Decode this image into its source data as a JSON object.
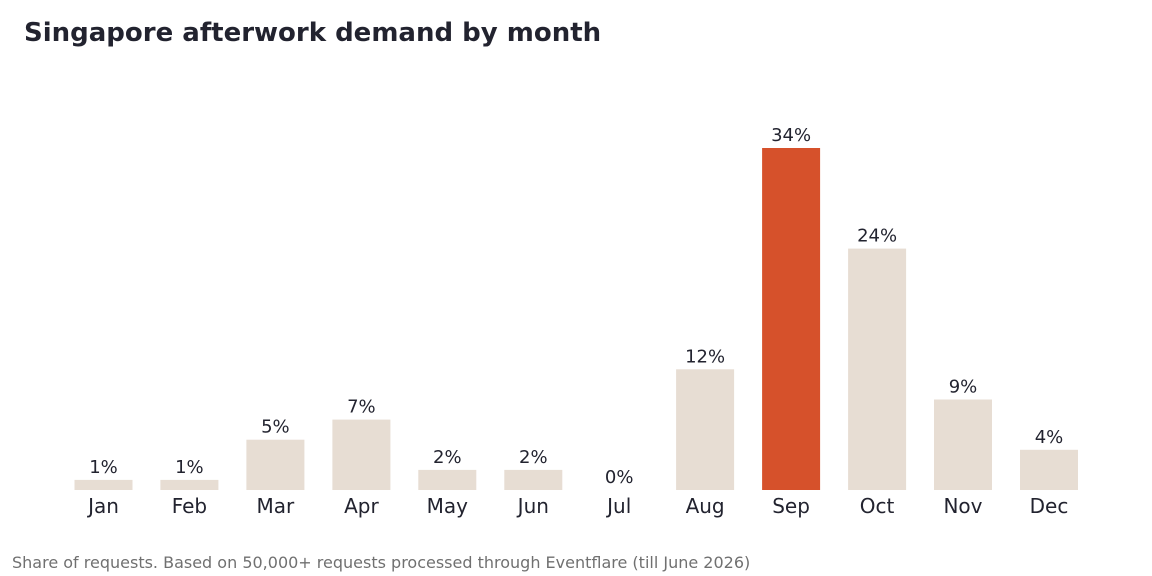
{
  "chart_data": {
    "type": "bar",
    "title": "Singapore afterwork demand by month",
    "footnote": "Share of requests. Based on 50,000+ requests processed through Eventflare (till June 2026)",
    "categories": [
      "Jan",
      "Feb",
      "Mar",
      "Apr",
      "May",
      "Jun",
      "Jul",
      "Aug",
      "Sep",
      "Oct",
      "Nov",
      "Dec"
    ],
    "values": [
      1,
      1,
      5,
      7,
      2,
      2,
      0,
      12,
      34,
      24,
      9,
      4
    ],
    "value_labels": [
      "1%",
      "1%",
      "5%",
      "7%",
      "2%",
      "2%",
      "0%",
      "12%",
      "34%",
      "24%",
      "9%",
      "4%"
    ],
    "unit": "%",
    "highlight_category": "Sep",
    "ylim": [
      0,
      34
    ],
    "grid": false,
    "legend": "none",
    "colors": {
      "bar": "#e7ddd3",
      "highlight": "#d6512b",
      "text": "#22232f",
      "footnote": "#707070"
    }
  }
}
